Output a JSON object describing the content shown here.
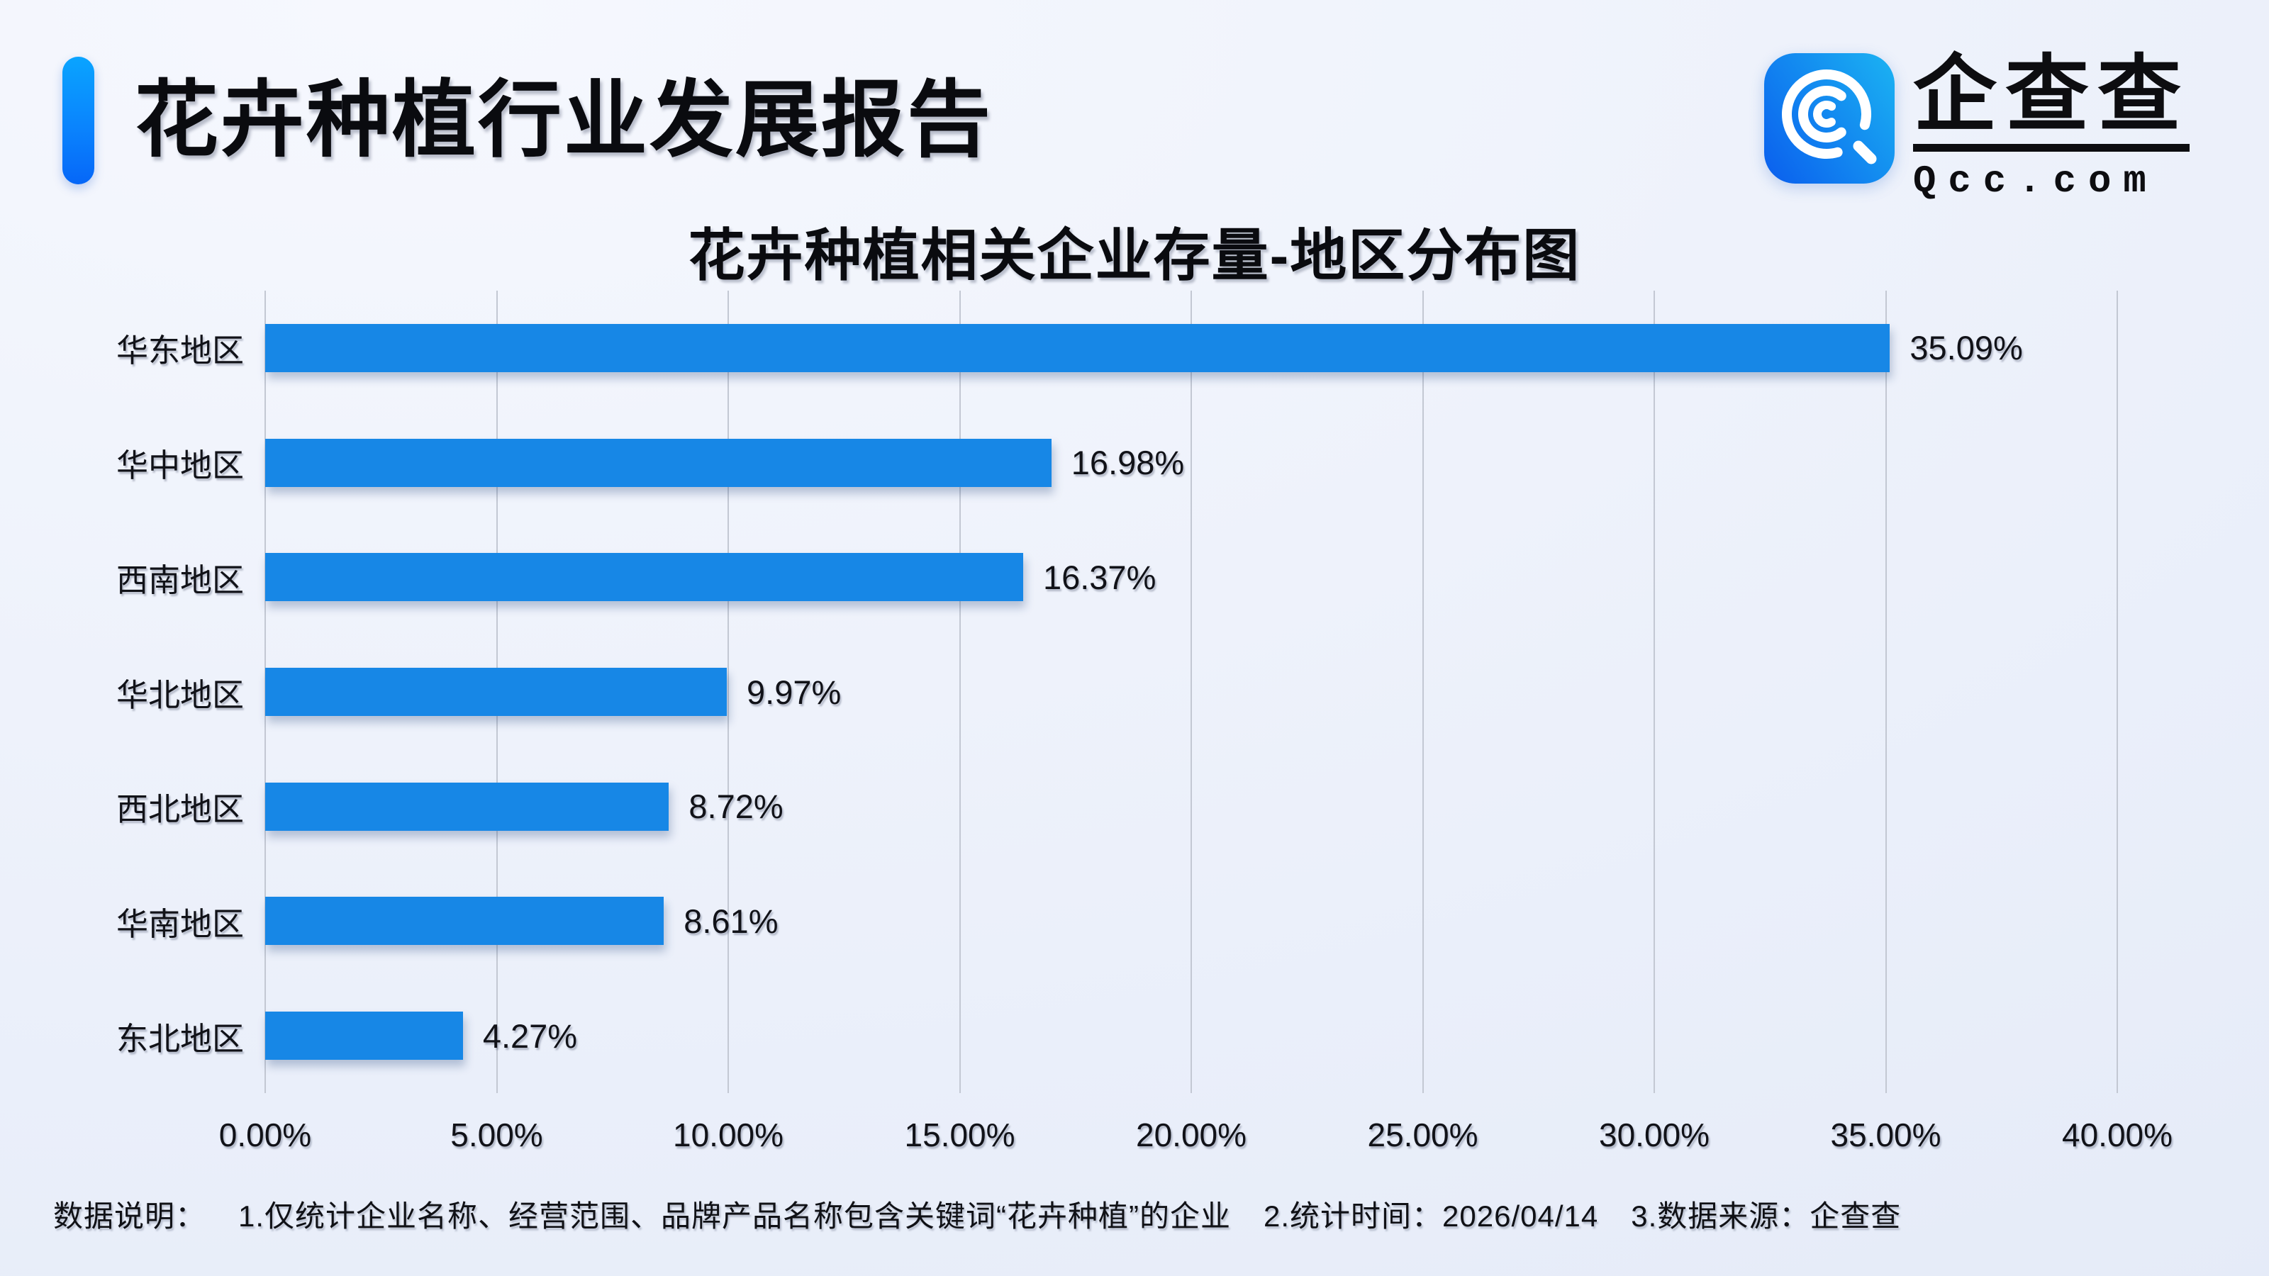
{
  "page": {
    "report_title": "花卉种植行业发展报告"
  },
  "logo": {
    "icon": "qcc-magnifier-icon",
    "brand_name": "企查查",
    "brand_domain": "Qcc.com"
  },
  "colors": {
    "bar": "#1787e6",
    "accent_pill_top": "#0aa4ff",
    "accent_pill_bottom": "#0667f8",
    "logo_gradient_start": "#0b63ee",
    "logo_gradient_end": "#1aaef2",
    "gridline": "#c3c8d3",
    "background": "#edf1fa",
    "text": "#0a0b0f"
  },
  "chart_data": {
    "type": "bar",
    "orientation": "horizontal",
    "title": "花卉种植相关企业存量-地区分布图",
    "categories": [
      "华东地区",
      "华中地区",
      "西南地区",
      "华北地区",
      "西北地区",
      "华南地区",
      "东北地区"
    ],
    "values": [
      35.09,
      16.98,
      16.37,
      9.97,
      8.72,
      8.61,
      4.27
    ],
    "value_labels": [
      "35.09%",
      "16.98%",
      "16.37%",
      "9.97%",
      "8.72%",
      "8.61%",
      "4.27%"
    ],
    "xlabel": "",
    "ylabel": "",
    "xlim": [
      0,
      40
    ],
    "x_ticks": [
      0,
      5,
      10,
      15,
      20,
      25,
      30,
      35,
      40
    ],
    "x_tick_labels": [
      "0.00%",
      "5.00%",
      "10.00%",
      "15.00%",
      "20.00%",
      "25.00%",
      "30.00%",
      "35.00%",
      "40.00%"
    ],
    "grid": "vertical-only",
    "legend": false,
    "bar_color": "#1787e6"
  },
  "footer": {
    "label": "数据说明：",
    "items": [
      "1.仅统计企业名称、经营范围、品牌产品名称包含关键词“花卉种植”的企业",
      "2.统计时间：2026/04/14",
      "3.数据来源：企查查"
    ]
  }
}
